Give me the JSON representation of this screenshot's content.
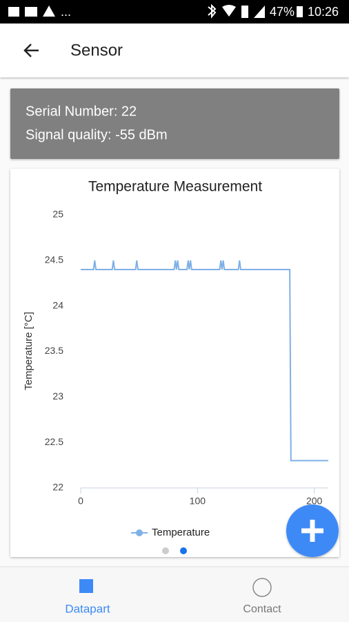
{
  "status_bar": {
    "left": "...",
    "battery": "47%",
    "time": "10:26"
  },
  "app_bar": {
    "title": "Sensor"
  },
  "info": {
    "serial": "Serial Number: 22",
    "signal": "Signal quality: -55 dBm"
  },
  "chart_data": {
    "type": "line",
    "title": "Temperature Measurement",
    "y_label": "Temperature [°C]",
    "x": [
      0,
      11,
      12,
      13,
      27,
      28,
      29,
      47,
      48,
      49,
      80,
      81,
      82,
      83,
      84,
      91,
      92,
      93,
      94,
      95,
      119,
      120,
      121,
      122,
      123,
      135,
      136,
      137,
      179,
      180,
      212
    ],
    "series": [
      {
        "name": "Temperature",
        "color": "#7fb0e6",
        "values": [
          24.4,
          24.4,
          24.5,
          24.4,
          24.4,
          24.5,
          24.4,
          24.4,
          24.5,
          24.4,
          24.4,
          24.5,
          24.4,
          24.5,
          24.4,
          24.4,
          24.5,
          24.4,
          24.5,
          24.4,
          24.4,
          24.5,
          24.4,
          24.5,
          24.4,
          24.4,
          24.5,
          24.4,
          24.4,
          22.3,
          22.3
        ]
      }
    ],
    "xlim": [
      0,
      212
    ],
    "xticks": [
      0,
      100,
      200
    ],
    "ylim": [
      22,
      25
    ],
    "yticks": [
      22,
      22.5,
      23,
      23.5,
      24,
      24.5,
      25
    ],
    "grid": false,
    "legend": "bottom"
  },
  "bottom_nav": {
    "items": [
      "Datapart",
      "Contact"
    ]
  }
}
